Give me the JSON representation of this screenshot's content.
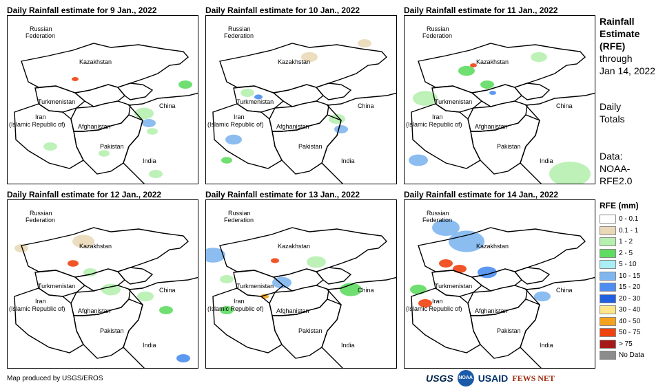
{
  "panels": [
    {
      "title": "Daily Rainfall estimate for 9 Jan., 2022"
    },
    {
      "title": "Daily Rainfall estimate for 10 Jan., 2022"
    },
    {
      "title": "Daily Rainfall estimate for 11 Jan., 2022"
    },
    {
      "title": "Daily Rainfall estimate for 12 Jan., 2022"
    },
    {
      "title": "Daily Rainfall estimate for 13 Jan., 2022"
    },
    {
      "title": "Daily Rainfall estimate for 14 Jan., 2022"
    }
  ],
  "map_labels": {
    "russia_1": "Russian",
    "russia_2": "Federation",
    "kazakhstan": "Kazakhstan",
    "turkmenistan": "Turkmenistan",
    "iran_1": "Iran",
    "iran_2": "(Islamic Republic of)",
    "afghanistan": "Afghanistan",
    "pakistan": "Pakistan",
    "china": "China",
    "india": "India"
  },
  "side_text": {
    "rfe_1": "Rainfall",
    "rfe_2": "Estimate",
    "rfe_3": "(RFE)",
    "through": "through",
    "date": "Jan 14, 2022",
    "daily": "Daily",
    "totals": "Totals",
    "data": "Data:",
    "source_1": "NOAA-",
    "source_2": "RFE2.0"
  },
  "legend": {
    "title": "RFE (mm)",
    "items": [
      {
        "label": "0 - 0.1",
        "color": "#ffffff"
      },
      {
        "label": "0.1 - 1",
        "color": "#ead9b8"
      },
      {
        "label": "1 - 2",
        "color": "#b6f0b0"
      },
      {
        "label": "2 - 5",
        "color": "#5fdc62"
      },
      {
        "label": "5 - 10",
        "color": "#a9eef5"
      },
      {
        "label": "10 - 15",
        "color": "#7fb6f0"
      },
      {
        "label": "15 - 20",
        "color": "#4d8ef0"
      },
      {
        "label": "20 - 30",
        "color": "#1f5fe0"
      },
      {
        "label": "30 - 40",
        "color": "#fde68a"
      },
      {
        "label": "40 - 50",
        "color": "#f7a21c"
      },
      {
        "label": "50 - 75",
        "color": "#f0420f"
      },
      {
        "label": "> 75",
        "color": "#a51919"
      },
      {
        "label": "No Data",
        "color": "#8c8c8c"
      }
    ]
  },
  "footer": {
    "credit": "Map produced by USGS/EROS",
    "logos": [
      "USGS",
      "NOAA",
      "USAID",
      "FEWS NET"
    ]
  }
}
